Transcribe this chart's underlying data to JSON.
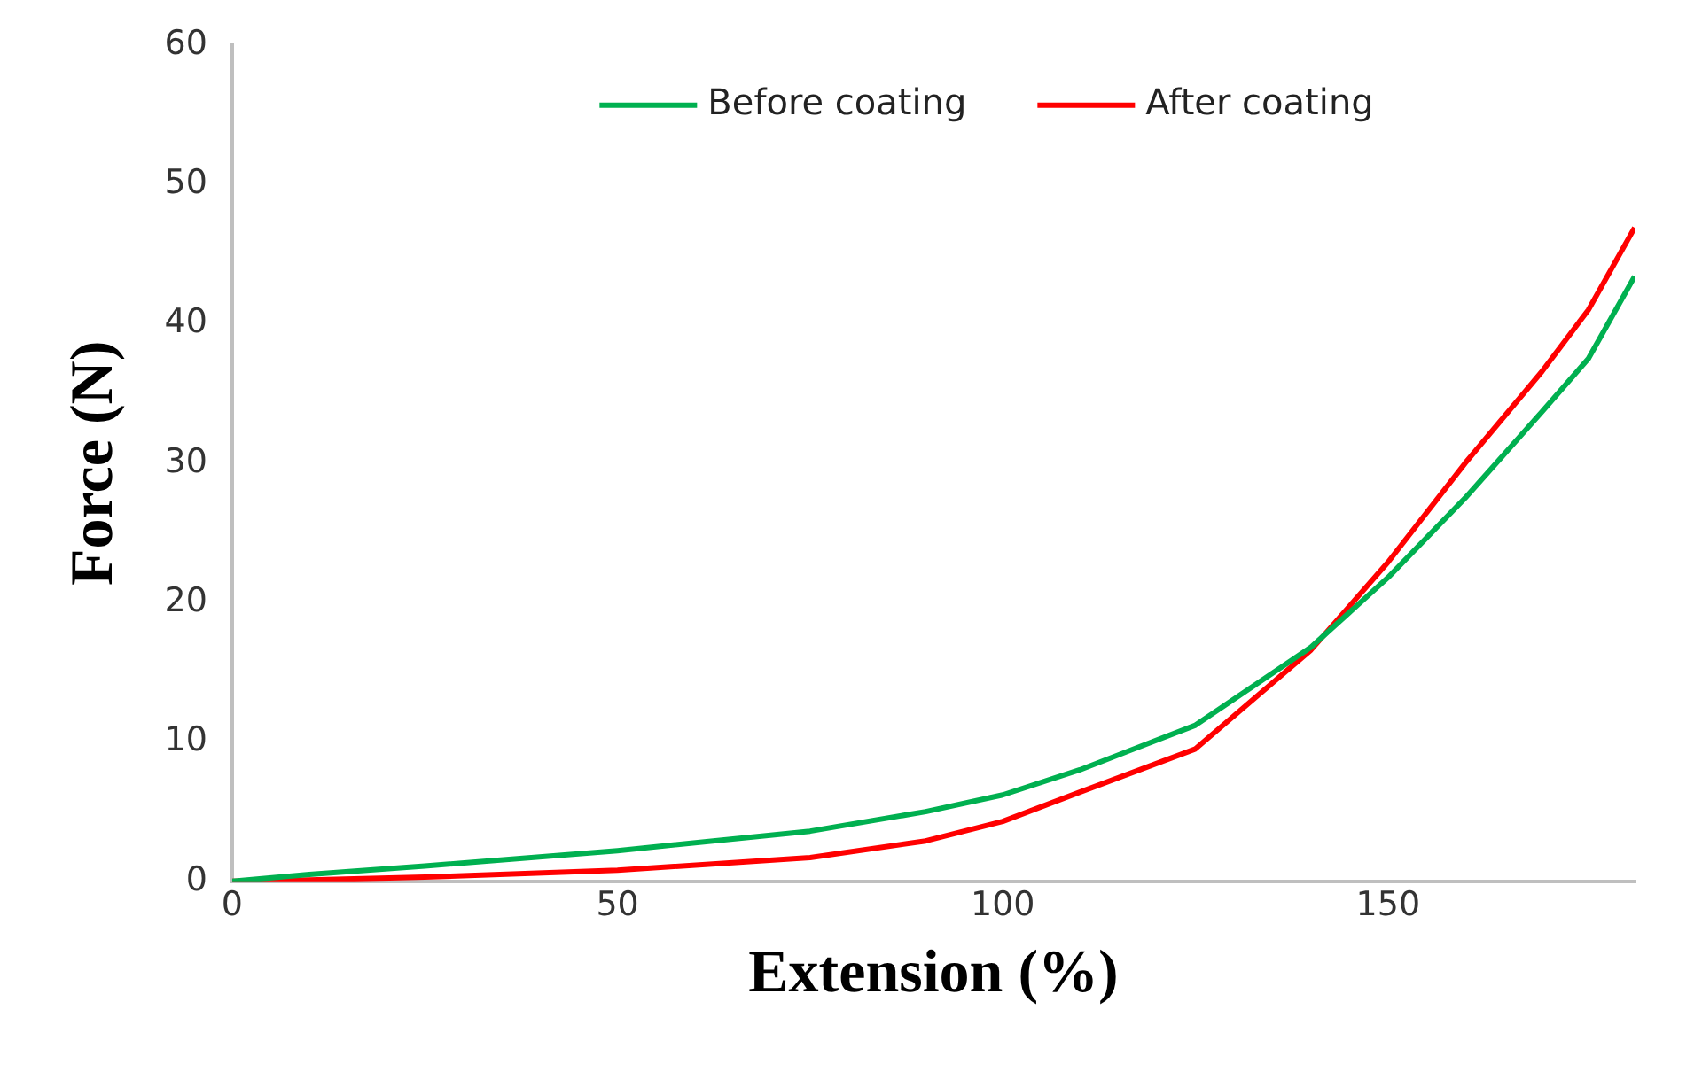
{
  "chart_data": {
    "type": "line",
    "xlabel": "Extension (%)",
    "ylabel": "Force (N)",
    "xlim": [
      0,
      182
    ],
    "xticks": [
      0,
      50,
      100,
      150
    ],
    "ylim": [
      0,
      60
    ],
    "yticks": [
      0,
      10,
      20,
      30,
      40,
      50,
      60
    ],
    "grid": false,
    "legend": "top",
    "marker": "none",
    "line_style": "solid",
    "series": [
      {
        "name": "Before coating",
        "color": "#00b050",
        "x": [
          0,
          10,
          25,
          50,
          75,
          90,
          100,
          110,
          125,
          140,
          150,
          160,
          170,
          176,
          182
        ],
        "values": [
          0,
          0.5,
          1.1,
          2.2,
          3.6,
          5,
          6.2,
          8,
          11.2,
          16.8,
          21.8,
          27.5,
          33.7,
          37.5,
          43.4
        ]
      },
      {
        "name": "After coating",
        "color": "#ff0000",
        "x": [
          0,
          10,
          25,
          50,
          75,
          90,
          100,
          110,
          125,
          140,
          150,
          160,
          170,
          176,
          182
        ],
        "values": [
          0,
          0.1,
          0.3,
          0.8,
          1.7,
          2.9,
          4.3,
          6.4,
          9.5,
          16.6,
          22.9,
          30,
          36.6,
          41,
          46.9
        ]
      }
    ]
  }
}
